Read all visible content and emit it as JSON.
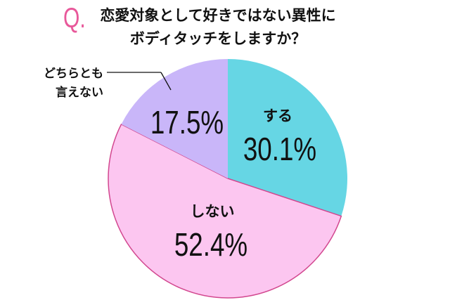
{
  "question_mark": "Q.",
  "title_lines": [
    "恋愛対象として好きではない異性に",
    "ボディタッチをしますか？"
  ],
  "chart_data": {
    "type": "pie",
    "start": "top",
    "direction": "clockwise",
    "categories": [
      "する",
      "しない",
      "どちらとも言えない"
    ],
    "values": [
      30.1,
      52.4,
      17.5
    ],
    "labels": [
      "30.1%",
      "52.4%",
      "17.5%"
    ],
    "category_label_lines": [
      [
        "する"
      ],
      [
        "しない"
      ],
      [
        "どちらとも",
        "言えない"
      ]
    ],
    "colors": [
      "#66d6e4",
      "#fcc6f0",
      "#c9b6f9"
    ],
    "pink_border": "#d2478f"
  }
}
